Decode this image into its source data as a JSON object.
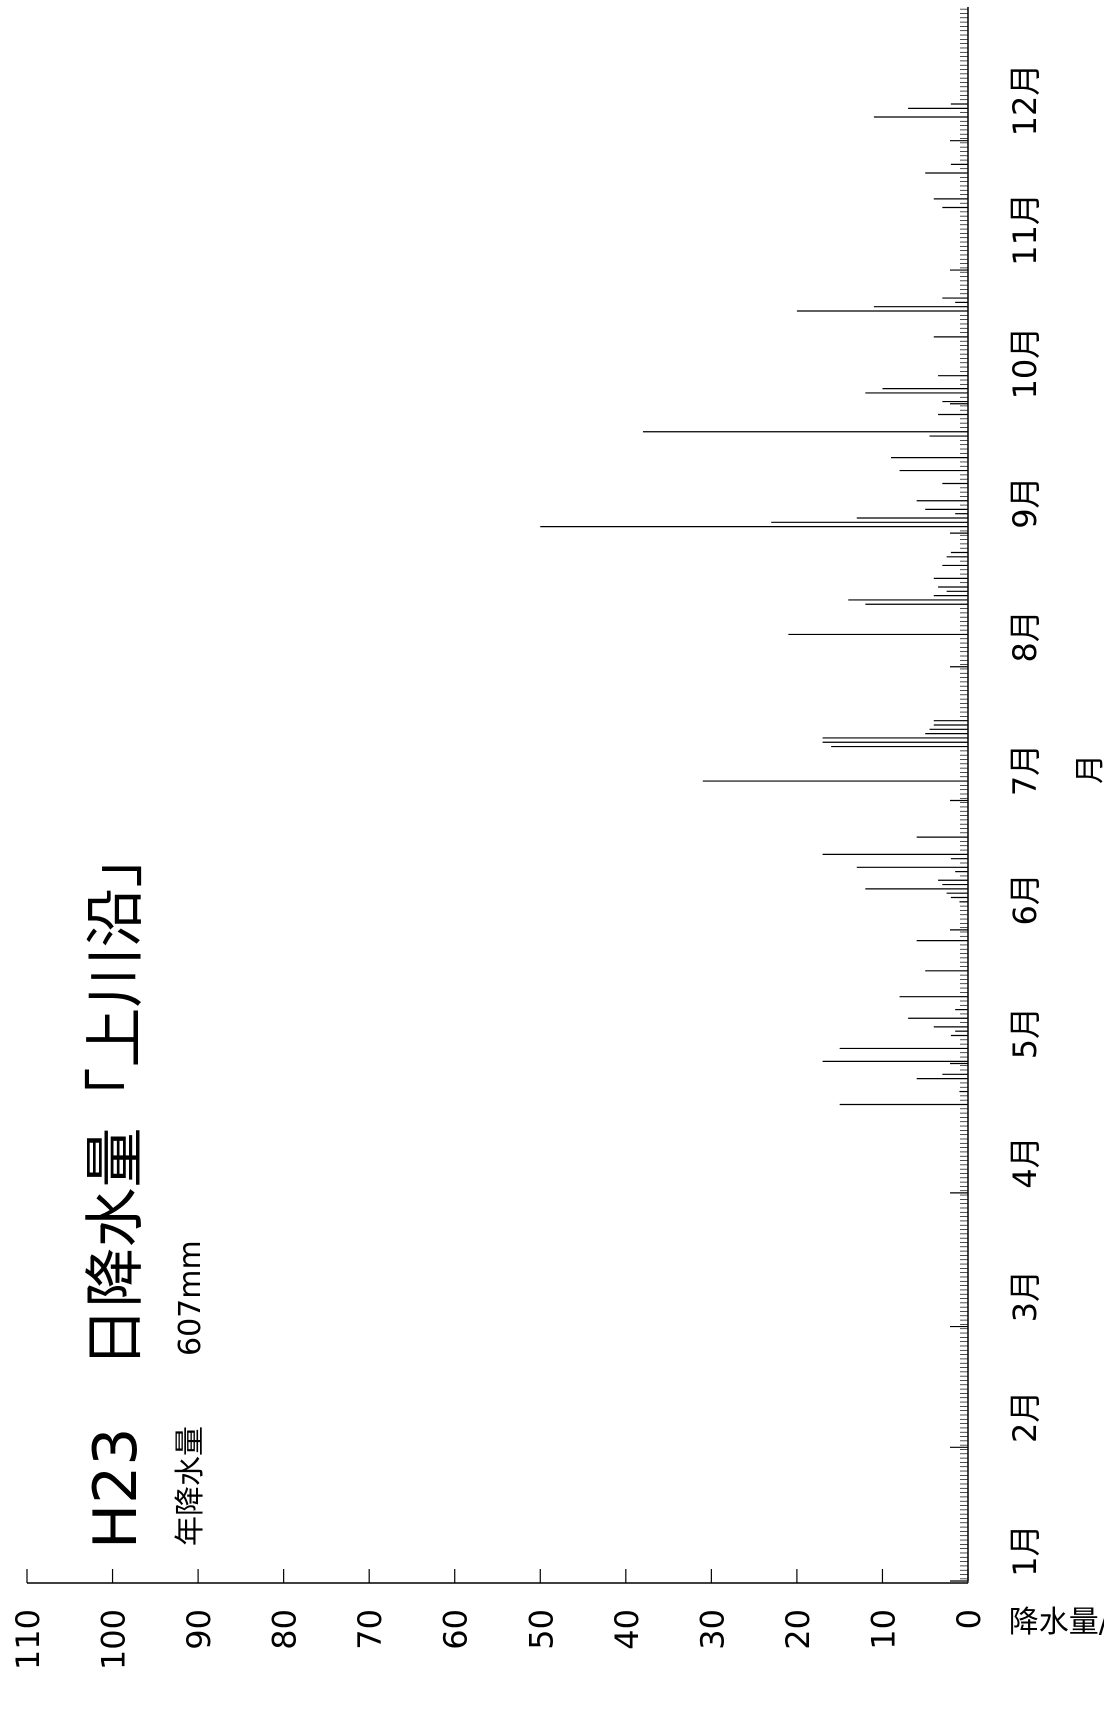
{
  "chart_data": {
    "type": "bar",
    "title": "H23　日降水量「上川沿」",
    "subtitle_label": "年降水量",
    "subtitle_value": "607mm",
    "xlabel": "月",
    "ylabel": "降水量/mm",
    "ylim": [
      0,
      110
    ],
    "y_ticks": [
      "0",
      "10",
      "20",
      "30",
      "40",
      "50",
      "60",
      "70",
      "80",
      "90",
      "100",
      "110"
    ],
    "month_labels": [
      "1月",
      "2月",
      "3月",
      "4月",
      "5月",
      "6月",
      "7月",
      "8月",
      "9月",
      "10月",
      "11月",
      "12月"
    ],
    "x_unit": "day of year (2011)",
    "bar_color": "#000000",
    "grid": false,
    "orientation": "rotated 90° counter-clockwise",
    "days": [
      111,
      114,
      117,
      118,
      121,
      124,
      127,
      128,
      129,
      131,
      133,
      136,
      142,
      149,
      158,
      159,
      160,
      161,
      162,
      163,
      165,
      166,
      168,
      169,
      173,
      186,
      194,
      195,
      196,
      197,
      198,
      199,
      200,
      220,
      227,
      228,
      229,
      230,
      231,
      233,
      236,
      238,
      239,
      245,
      246,
      247,
      248,
      249,
      251,
      255,
      258,
      261,
      266,
      267,
      271,
      274,
      276,
      277,
      280,
      289,
      295,
      296,
      297,
      298,
      319,
      321,
      327,
      329,
      340,
      342,
      343
    ],
    "values": [
      15,
      1,
      6,
      3,
      17,
      15,
      2,
      1.5,
      4,
      7,
      1.5,
      8,
      5,
      6,
      1,
      2,
      2.5,
      12,
      3,
      3.5,
      1.5,
      13,
      2,
      17,
      6,
      31,
      16,
      17,
      17,
      5,
      4.5,
      4,
      4,
      21,
      12,
      14,
      4,
      2.5,
      3.5,
      4,
      3,
      2.5,
      2,
      50,
      23,
      13,
      1.5,
      5,
      6,
      3,
      8,
      9,
      4.5,
      38,
      3.5,
      3,
      12,
      10,
      3.5,
      4,
      20,
      11,
      1.5,
      3,
      3,
      4,
      5,
      2,
      11,
      7,
      2
    ]
  }
}
